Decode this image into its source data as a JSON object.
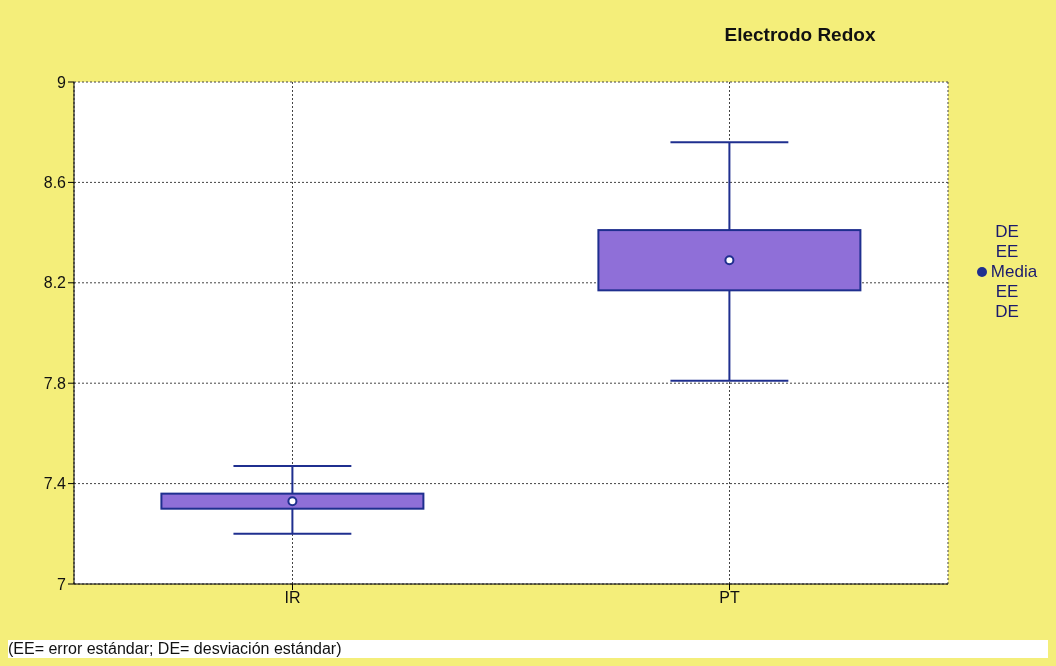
{
  "chart_data": {
    "type": "box",
    "title": "Electrodo Redox",
    "categories": [
      "IR",
      "PT"
    ],
    "series": [
      {
        "name": "Media",
        "color": "#8f6fd8",
        "boxes": [
          {
            "low": 7.2,
            "q1": 7.3,
            "median": 7.33,
            "q3": 7.36,
            "high": 7.47
          },
          {
            "low": 7.81,
            "q1": 8.17,
            "median": 8.29,
            "q3": 8.41,
            "high": 8.76
          }
        ]
      }
    ],
    "ylim": [
      7,
      9
    ],
    "yticks": [
      7,
      7.4,
      7.8,
      8.2,
      8.6,
      9
    ],
    "grid": true,
    "legend": "right",
    "annotations": [
      "DE",
      "EE",
      "EE",
      "DE",
      "(EE= error estándar; DE= desviación estándar)"
    ]
  }
}
